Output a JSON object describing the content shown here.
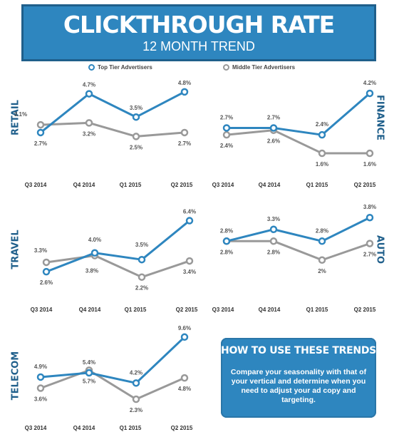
{
  "header": {
    "title": "CLICKTHROUGH RATE",
    "subtitle": "12 MONTH TREND"
  },
  "legend": {
    "top_tier": "Top Tier Advertisers",
    "middle_tier": "Middle Tier Advertisers"
  },
  "colors": {
    "top": "#2e86bf",
    "middle": "#999999",
    "title_blue": "#1f5f8b"
  },
  "howto": {
    "title": "HOW TO USE THESE TRENDS",
    "body": "Compare your seasonality with that of your vertical and determine when you need to adjust your ad copy and targeting."
  },
  "chart_data": [
    {
      "type": "line",
      "title": "RETAIL",
      "categories": [
        "Q3 2014",
        "Q4 2014",
        "Q1 2015",
        "Q2 2015"
      ],
      "series": [
        {
          "name": "Top Tier Advertisers",
          "values": [
            2.7,
            4.7,
            3.5,
            4.8
          ],
          "labels": [
            "2.7%",
            "4.7%",
            "3.5%",
            "4.8%"
          ]
        },
        {
          "name": "Middle Tier Advertisers",
          "values": [
            3.1,
            3.2,
            2.5,
            2.7
          ],
          "labels": [
            "3.1%",
            "3.2%",
            "2.5%",
            "2.7%"
          ]
        }
      ]
    },
    {
      "type": "line",
      "title": "FINANCE",
      "categories": [
        "Q3 2014",
        "Q4 2014",
        "Q1 2015",
        "Q2 2015"
      ],
      "series": [
        {
          "name": "Top Tier Advertisers",
          "values": [
            2.7,
            2.7,
            2.4,
            4.2
          ],
          "labels": [
            "2.7%",
            "2.7%",
            "2.4%",
            "4.2%"
          ]
        },
        {
          "name": "Middle Tier Advertisers",
          "values": [
            2.4,
            2.6,
            1.6,
            1.6
          ],
          "labels": [
            "2.4%",
            "2.6%",
            "1.6%",
            "1.6%"
          ]
        }
      ]
    },
    {
      "type": "line",
      "title": "TRAVEL",
      "categories": [
        "Q3 2014",
        "Q4 2014",
        "Q1 2015",
        "Q2 2015"
      ],
      "series": [
        {
          "name": "Top Tier Advertisers",
          "values": [
            2.6,
            4.0,
            3.5,
            6.4
          ],
          "labels": [
            "2.6%",
            "4.0%",
            "3.5%",
            "6.4%"
          ]
        },
        {
          "name": "Middle Tier Advertisers",
          "values": [
            3.3,
            3.8,
            2.2,
            3.4
          ],
          "labels": [
            "3.3%",
            "3.8%",
            "2.2%",
            "3.4%"
          ]
        }
      ]
    },
    {
      "type": "line",
      "title": "AUTO",
      "categories": [
        "Q3 2014",
        "Q4 2014",
        "Q1 2015",
        "Q2 2015"
      ],
      "series": [
        {
          "name": "Top Tier Advertisers",
          "values": [
            2.8,
            3.3,
            2.8,
            3.8
          ],
          "labels": [
            "2.8%",
            "3.3%",
            "2.8%",
            "3.8%"
          ]
        },
        {
          "name": "Middle Tier Advertisers",
          "values": [
            2.8,
            2.8,
            2.0,
            2.7
          ],
          "labels": [
            "2.8%",
            "2.8%",
            "2%",
            "2.7%"
          ]
        }
      ]
    },
    {
      "type": "line",
      "title": "TELECOM",
      "categories": [
        "Q3 2014",
        "Q4 2014",
        "Q1 2015",
        "Q2 2015"
      ],
      "series": [
        {
          "name": "Top Tier Advertisers",
          "values": [
            4.9,
            5.4,
            4.2,
            9.6
          ],
          "labels": [
            "4.9%",
            "5.4%",
            "4.2%",
            "9.6%"
          ]
        },
        {
          "name": "Middle Tier Advertisers",
          "values": [
            3.6,
            5.7,
            2.3,
            4.8
          ],
          "labels": [
            "3.6%",
            "5.7%",
            "2.3%",
            "4.8%"
          ]
        }
      ]
    }
  ]
}
